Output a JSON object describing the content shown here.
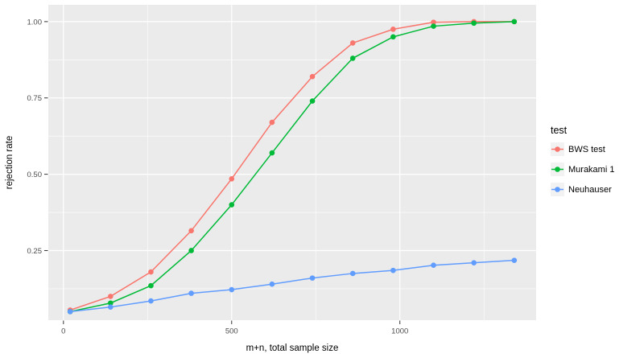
{
  "chart_data": {
    "type": "line",
    "title": "",
    "xlabel": "m+n, total sample size",
    "ylabel": "rejection rate",
    "legend_title": "test",
    "legend_position": "right",
    "grid": true,
    "x": [
      20,
      140,
      260,
      380,
      500,
      620,
      740,
      860,
      980,
      1100,
      1220,
      1340
    ],
    "series": [
      {
        "name": "BWS test",
        "color": "#F8766D",
        "values": [
          0.055,
          0.1,
          0.18,
          0.315,
          0.485,
          0.67,
          0.82,
          0.93,
          0.975,
          0.998,
          1.0,
          1.0
        ]
      },
      {
        "name": "Murakami 1",
        "color": "#00BA38",
        "values": [
          0.05,
          0.078,
          0.135,
          0.25,
          0.4,
          0.57,
          0.74,
          0.88,
          0.95,
          0.985,
          0.995,
          1.0
        ]
      },
      {
        "name": "Neuhauser",
        "color": "#619CFF",
        "values": [
          0.05,
          0.065,
          0.085,
          0.11,
          0.122,
          0.14,
          0.16,
          0.175,
          0.185,
          0.202,
          0.21,
          0.218
        ]
      }
    ],
    "x_ticks": {
      "values": [
        0,
        500,
        1000
      ],
      "labels": [
        "0",
        "500",
        "1000"
      ],
      "minor": [
        250,
        750,
        1250
      ]
    },
    "y_ticks": {
      "values": [
        0.25,
        0.5,
        0.75,
        1.0
      ],
      "labels": [
        "0.25",
        "0.50",
        "0.75",
        "1.00"
      ],
      "minor": [
        0.125,
        0.375,
        0.625,
        0.875
      ]
    },
    "xlim": [
      -45,
      1405
    ],
    "ylim": [
      0.022,
      1.055
    ],
    "panel_bg": "#EBEBEB",
    "grid_color": "#FFFFFF",
    "tick_color": "#333333",
    "tick_label_color": "#4D4D4D",
    "legend_key_bg": "#F2F2F2"
  }
}
